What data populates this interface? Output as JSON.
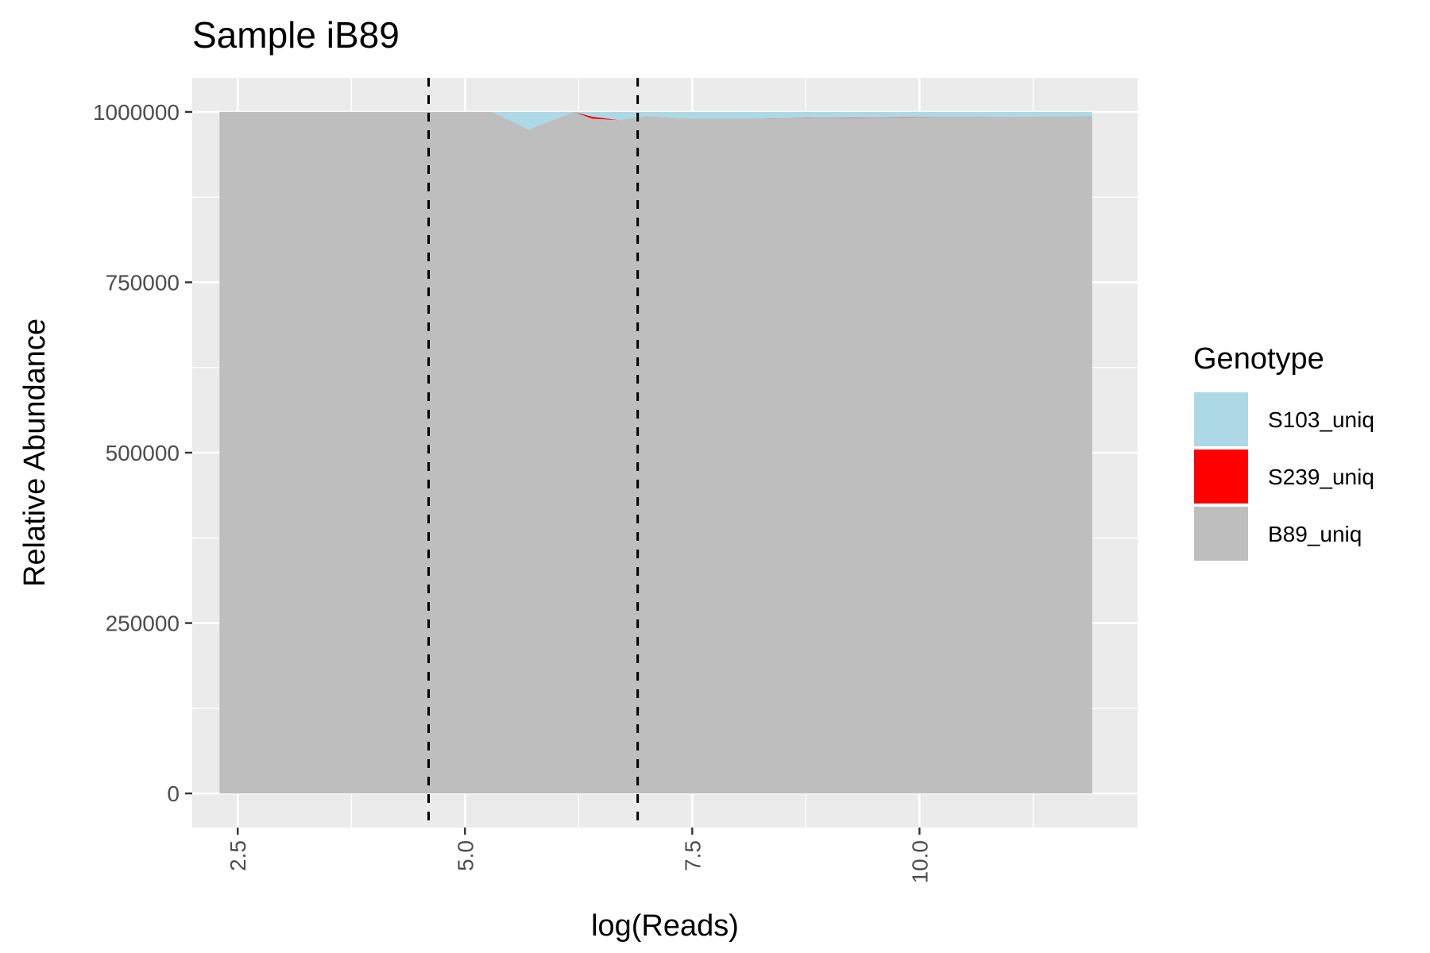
{
  "chart_data": {
    "type": "area",
    "title": "Sample iB89",
    "xlabel": "log(Reads)",
    "ylabel": "Relative Abundance",
    "xlim": [
      2.0,
      12.4
    ],
    "ylim": [
      -50000,
      1050000
    ],
    "x_ticks": [
      2.5,
      5.0,
      7.5,
      10.0
    ],
    "x_tick_labels": [
      "2.5",
      "5.0",
      "7.5",
      "10.0"
    ],
    "y_ticks": [
      0,
      250000,
      500000,
      750000,
      1000000
    ],
    "y_tick_labels": [
      "0",
      "250000",
      "500000",
      "750000",
      "1000000"
    ],
    "grid": true,
    "stacked": true,
    "x": [
      2.3,
      3.0,
      4.0,
      5.0,
      5.3,
      5.7,
      6.2,
      6.4,
      6.7,
      7.0,
      7.5,
      8.0,
      9.0,
      10.0,
      11.0,
      11.9
    ],
    "series": [
      {
        "name": "B89_uniq",
        "color": "#BEBEBE",
        "values": [
          1000000,
          1000000,
          1000000,
          1000000,
          1000000,
          974000,
          1000000,
          990000,
          988000,
          994000,
          990000,
          990000,
          991000,
          992000,
          993000,
          994000
        ]
      },
      {
        "name": "S239_uniq",
        "color": "#FF0000",
        "values": [
          0,
          0,
          0,
          0,
          0,
          0,
          0,
          3000,
          0,
          0,
          0,
          0,
          500,
          500,
          0,
          0
        ]
      },
      {
        "name": "S103_uniq",
        "color": "#ADD8E6",
        "values": [
          0,
          0,
          0,
          0,
          0,
          26000,
          0,
          7000,
          12000,
          6000,
          10000,
          10000,
          8500,
          7500,
          7000,
          6000
        ]
      }
    ],
    "vlines": [
      4.6,
      6.9
    ],
    "legend": {
      "title": "Genotype",
      "position": "right",
      "order": [
        "S103_uniq",
        "S239_uniq",
        "B89_uniq"
      ]
    },
    "colors": {
      "panel_bg": "#EBEBEB",
      "grid": "#FFFFFF",
      "vline": "#000000"
    }
  }
}
